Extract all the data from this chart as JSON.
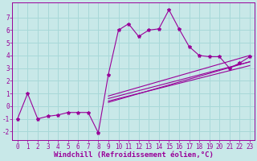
{
  "background_color": "#c8e8e8",
  "grid_color": "#a8d8d8",
  "line_color": "#990099",
  "xlabel": "Windchill (Refroidissement éolien,°C)",
  "xlabel_fontsize": 6.5,
  "tick_fontsize": 5.5,
  "xlim": [
    -0.5,
    23.5
  ],
  "ylim": [
    -2.7,
    8.2
  ],
  "yticks": [
    -2,
    -1,
    0,
    1,
    2,
    3,
    4,
    5,
    6,
    7
  ],
  "xticks": [
    0,
    1,
    2,
    3,
    4,
    5,
    6,
    7,
    8,
    9,
    10,
    11,
    12,
    13,
    14,
    15,
    16,
    17,
    18,
    19,
    20,
    21,
    22,
    23
  ],
  "series": [
    [
      0,
      -1.0
    ],
    [
      1,
      1.0
    ],
    [
      2,
      -1.0
    ],
    [
      3,
      -0.8
    ],
    [
      4,
      -0.7
    ],
    [
      5,
      -0.5
    ],
    [
      6,
      -0.5
    ],
    [
      7,
      -0.5
    ],
    [
      8,
      -2.1
    ],
    [
      9,
      2.5
    ],
    [
      10,
      6.0
    ],
    [
      11,
      6.5
    ],
    [
      12,
      5.5
    ],
    [
      13,
      6.0
    ],
    [
      14,
      6.1
    ],
    [
      15,
      7.6
    ],
    [
      16,
      6.1
    ],
    [
      17,
      4.7
    ],
    [
      18,
      4.0
    ],
    [
      19,
      3.9
    ],
    [
      20,
      3.9
    ],
    [
      21,
      3.0
    ],
    [
      22,
      3.4
    ],
    [
      23,
      3.9
    ]
  ],
  "straight_lines": [
    [
      [
        9,
        0.8
      ],
      [
        23,
        4.0
      ]
    ],
    [
      [
        9,
        0.6
      ],
      [
        23,
        3.5
      ]
    ],
    [
      [
        9,
        0.4
      ],
      [
        23,
        3.2
      ]
    ],
    [
      [
        9,
        0.3
      ],
      [
        23,
        3.5
      ]
    ]
  ]
}
